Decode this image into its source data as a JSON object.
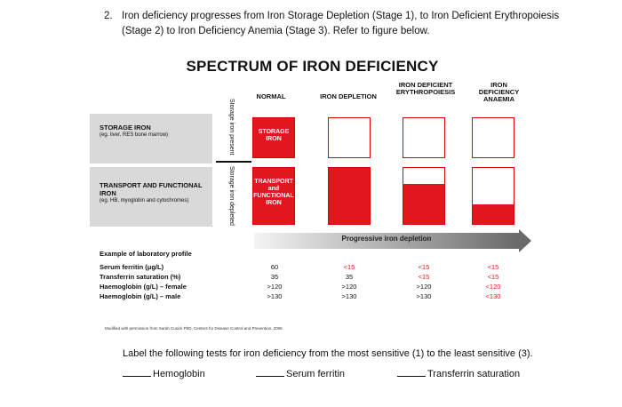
{
  "question": {
    "number": "2.",
    "text": "Iron deficiency progresses from Iron Storage Depletion (Stage 1), to Iron Deficient Erythropoiesis (Stage 2) to Iron Deficiency Anemia (Stage 3).  Refer to figure below."
  },
  "figure": {
    "title": "SPECTRUM OF IRON DEFICIENCY",
    "columns": [
      "NORMAL",
      "IRON DEPLETION",
      "IRON DEFICIENT ERYTHROPOIESIS",
      "IRON DEFICIENCY ANAEMIA"
    ],
    "rows": {
      "storage": {
        "label": "STORAGE IRON",
        "sub": "(eg. liver, RES bone marrow)"
      },
      "transport": {
        "label": "TRANSPORT AND FUNCTIONAL IRON",
        "sub": "(eg. HB, myoglobin and cytochromes)"
      }
    },
    "side_labels": {
      "present": "Storage iron present",
      "depleted": "Storage iron depleted"
    },
    "normal_box_labels": {
      "storage": "STORAGE IRON",
      "transport": "TRANSPORT and FUNCTIONAL IRON"
    },
    "fill_levels": {
      "storage": [
        1.0,
        0.0,
        0.0,
        0.0
      ],
      "transport": [
        1.0,
        1.0,
        0.72,
        0.35
      ]
    },
    "arrow_label": "Progressive iron depletion",
    "lab_profile": {
      "heading": "Example of laboratory profile",
      "tests": [
        {
          "name": "Serum ferritin (μg/L)",
          "values": [
            "60",
            "<15",
            "<15",
            "<15"
          ],
          "abnormal": [
            false,
            true,
            true,
            true
          ]
        },
        {
          "name": "Transferrin saturation (%)",
          "values": [
            "35",
            "35",
            "<15",
            "<15"
          ],
          "abnormal": [
            false,
            false,
            true,
            true
          ]
        },
        {
          "name": "Haemoglobin (g/L) – female",
          "values": [
            ">120",
            ">120",
            ">120",
            "<120"
          ],
          "abnormal": [
            false,
            false,
            false,
            true
          ]
        },
        {
          "name": "Haemoglobin (g/L) – male",
          "values": [
            ">130",
            ">130",
            ">130",
            "<130"
          ],
          "abnormal": [
            false,
            false,
            false,
            true
          ]
        }
      ]
    },
    "colors": {
      "red": "#e0171f",
      "band": "#d9d9d9"
    },
    "credit": "Modified with permission from Sarah Cusick PhD, Centers for Disease Control and Prevention, 2006"
  },
  "instruction": "Label the following tests for iron deficiency from the most sensitive (1) to the least sensitive (3).",
  "blanks": [
    "Hemoglobin",
    "Serum ferritin",
    "Transferrin saturation"
  ]
}
